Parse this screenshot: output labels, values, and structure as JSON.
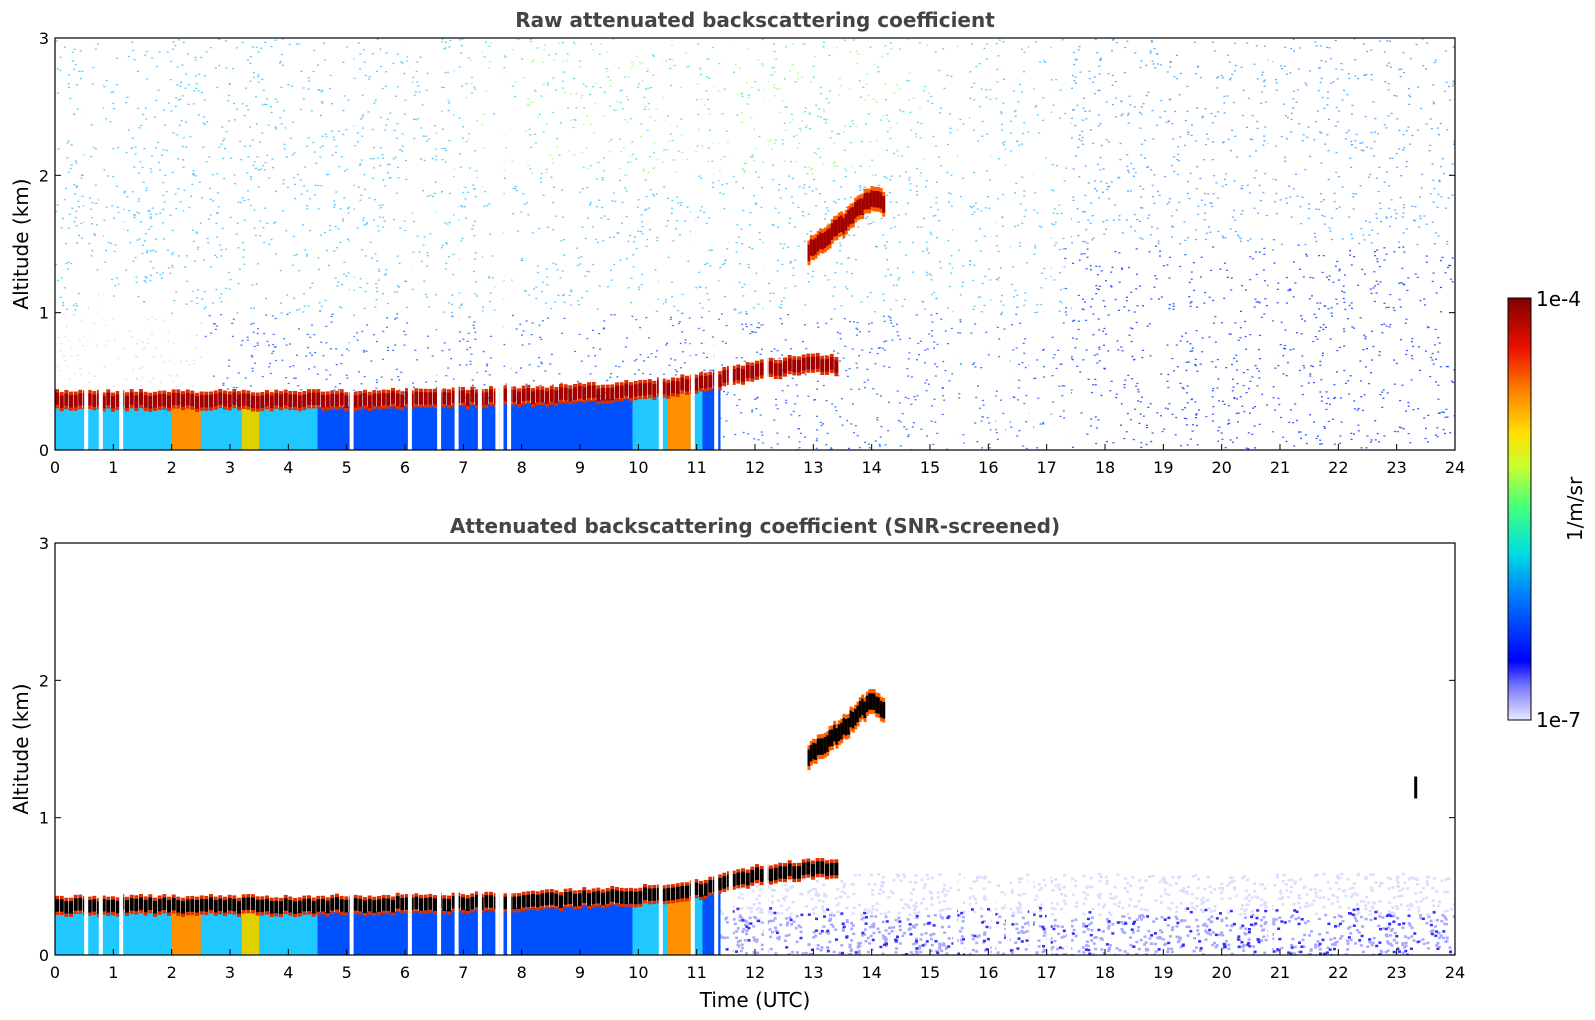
{
  "chart_data": [
    {
      "type": "heatmap",
      "title": "Raw attenuated backscattering coefficient",
      "xlabel": "",
      "ylabel": "Altitude (km)",
      "xlim": [
        0,
        24
      ],
      "ylim": [
        0,
        3
      ],
      "x_ticks": [
        "0",
        "1",
        "2",
        "3",
        "4",
        "5",
        "6",
        "7",
        "8",
        "9",
        "10",
        "11",
        "12",
        "13",
        "14",
        "15",
        "16",
        "17",
        "18",
        "19",
        "20",
        "21",
        "22",
        "23",
        "24"
      ],
      "y_ticks": [
        "0",
        "1",
        "2",
        "3"
      ],
      "screened": false,
      "features": [
        {
          "kind": "boundary_layer",
          "x": [
            0,
            2,
            4,
            6,
            8,
            10,
            11,
            12,
            13,
            13.4
          ],
          "y": [
            0.36,
            0.36,
            0.36,
            0.37,
            0.39,
            0.43,
            0.48,
            0.58,
            0.63,
            0.62
          ]
        },
        {
          "kind": "elevated_layer",
          "x": [
            12.9,
            13.2,
            13.5,
            13.8,
            14.0,
            14.2
          ],
          "y": [
            1.45,
            1.55,
            1.65,
            1.78,
            1.85,
            1.78
          ]
        }
      ],
      "data_gaps_x": [
        0.5,
        0.75,
        1.1,
        5.05,
        6.05,
        6.55,
        6.85,
        7.25,
        7.55,
        7.62,
        7.75,
        10.35,
        10.9,
        11.3,
        11.55,
        12.15,
        15.4,
        15.6,
        16.05,
        16.3,
        16.7,
        17.0,
        17.35,
        20.8
      ]
    },
    {
      "type": "heatmap",
      "title": "Attenuated backscattering coefficient (SNR-screened)",
      "xlabel": "Time (UTC)",
      "ylabel": "Altitude (km)",
      "xlim": [
        0,
        24
      ],
      "ylim": [
        0,
        3
      ],
      "x_ticks": [
        "0",
        "1",
        "2",
        "3",
        "4",
        "5",
        "6",
        "7",
        "8",
        "9",
        "10",
        "11",
        "12",
        "13",
        "14",
        "15",
        "16",
        "17",
        "18",
        "19",
        "20",
        "21",
        "22",
        "23",
        "24"
      ],
      "y_ticks": [
        "0",
        "1",
        "2",
        "3"
      ],
      "screened": true,
      "features": [
        {
          "kind": "boundary_layer",
          "x": [
            0,
            2,
            4,
            6,
            8,
            10,
            11,
            12,
            13,
            13.4
          ],
          "y": [
            0.36,
            0.36,
            0.36,
            0.37,
            0.39,
            0.43,
            0.48,
            0.58,
            0.63,
            0.62
          ]
        },
        {
          "kind": "elevated_layer",
          "x": [
            12.9,
            13.2,
            13.5,
            13.8,
            14.0,
            14.2
          ],
          "y": [
            1.45,
            1.55,
            1.65,
            1.78,
            1.85,
            1.78
          ]
        },
        {
          "kind": "isolated_cloud",
          "x": [
            23.3
          ],
          "y": [
            1.22
          ]
        }
      ],
      "data_gaps_x": [
        0.5,
        0.75,
        1.1,
        5.05,
        6.05,
        6.55,
        6.85,
        7.25,
        7.55,
        7.62,
        7.75,
        10.35,
        10.9,
        11.3,
        11.55,
        12.15,
        15.4,
        15.6,
        16.05,
        16.3,
        16.7,
        17.0,
        17.35,
        20.8
      ]
    }
  ],
  "colorbar": {
    "label": "1/m/sr",
    "max_label": "1e-4",
    "min_label": "1e-7",
    "scale": "log",
    "colormap": "jet",
    "range": [
      1e-07,
      0.0001
    ]
  },
  "colors": {
    "title_text": "#444444",
    "axis": "#000000",
    "background": "#ffffff",
    "saturated": "#000000"
  }
}
